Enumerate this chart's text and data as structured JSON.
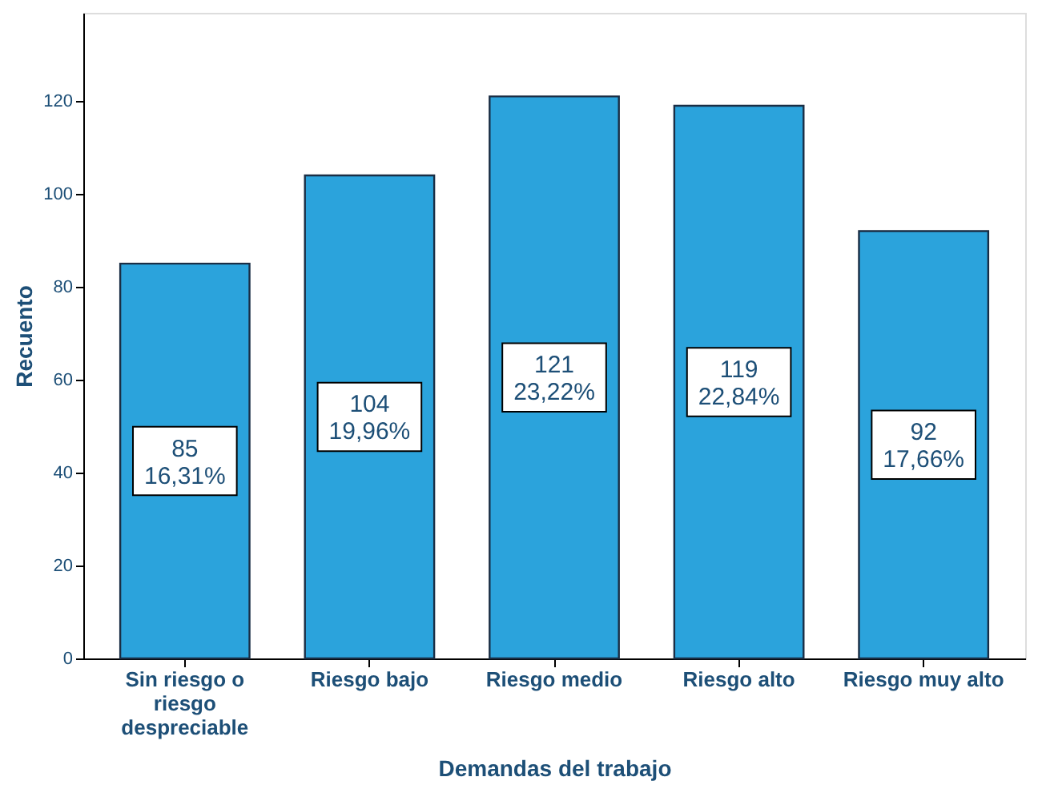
{
  "chart_data": {
    "type": "bar",
    "xlabel": "Demandas del trabajo",
    "ylabel": "Recuento",
    "categories": [
      "Sin riesgo o riesgo despreciable",
      "Riesgo bajo",
      "Riesgo medio",
      "Riesgo alto",
      "Riesgo muy alto"
    ],
    "values": [
      85,
      104,
      121,
      119,
      92
    ],
    "value_labels": [
      "85\n16,31%",
      "104\n19,96%",
      "121\n23,22%",
      "119\n22,84%",
      "92\n17,66%"
    ],
    "color": "#2ba3dc",
    "ylim": [
      0,
      139
    ],
    "yticks": [
      0,
      20,
      40,
      60,
      80,
      100,
      120
    ],
    "grid": false
  }
}
